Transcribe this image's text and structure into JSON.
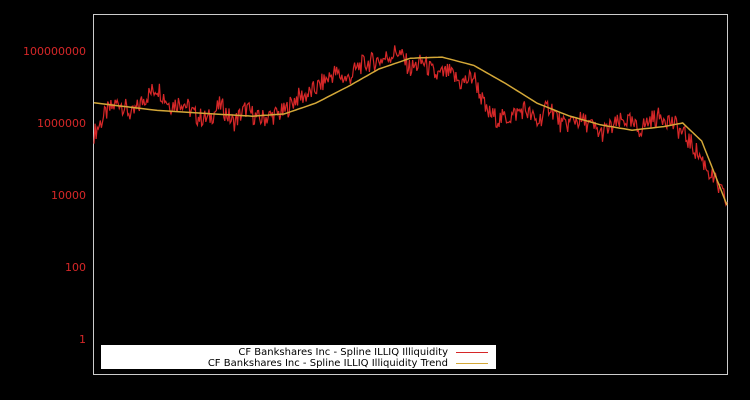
{
  "chart_data": {
    "type": "line",
    "title": "",
    "xlabel": "",
    "ylabel": "",
    "yscale": "log",
    "ylim": [
      0.2,
      1000000000
    ],
    "ytick_labels": [
      "100000000",
      "1000000",
      "10000",
      "100",
      "1"
    ],
    "ytick_values": [
      100000000,
      1000000,
      10000,
      100,
      1
    ],
    "grid": false,
    "legend_position": "lower left",
    "colors": {
      "background": "#000000",
      "frame": "#cccccc",
      "tick_label": "#d62728",
      "series": "#d62728",
      "trend": "#d4a838"
    },
    "series": [
      {
        "name": "CF Bankshares Inc - Spline ILLIQ Illiquidity",
        "x_norm": [
          0.0,
          0.02,
          0.04,
          0.06,
          0.08,
          0.1,
          0.12,
          0.14,
          0.16,
          0.18,
          0.2,
          0.22,
          0.24,
          0.26,
          0.28,
          0.3,
          0.32,
          0.34,
          0.36,
          0.38,
          0.4,
          0.42,
          0.44,
          0.46,
          0.48,
          0.5,
          0.52,
          0.54,
          0.56,
          0.58,
          0.6,
          0.62,
          0.64,
          0.66,
          0.68,
          0.7,
          0.72,
          0.74,
          0.76,
          0.78,
          0.8,
          0.82,
          0.84,
          0.86,
          0.88,
          0.9,
          0.92,
          0.94,
          0.96,
          0.98,
          1.0
        ],
        "log10_values": [
          5.7,
          6.3,
          6.6,
          6.2,
          6.7,
          7.0,
          6.5,
          6.6,
          6.2,
          6.1,
          6.5,
          6.0,
          6.4,
          6.1,
          6.2,
          6.3,
          6.7,
          6.8,
          7.1,
          7.4,
          7.2,
          7.6,
          7.7,
          7.8,
          8.0,
          7.5,
          7.7,
          7.3,
          7.4,
          7.1,
          7.3,
          6.3,
          6.1,
          6.2,
          6.4,
          6.0,
          6.5,
          5.9,
          6.1,
          6.0,
          5.7,
          5.9,
          6.1,
          5.8,
          6.1,
          6.2,
          5.9,
          5.5,
          5.0,
          4.4,
          3.8
        ]
      },
      {
        "name": "CF Bankshares Inc - Spline ILLIQ Illiquidity Trend",
        "x_norm": [
          0.0,
          0.1,
          0.2,
          0.25,
          0.3,
          0.35,
          0.4,
          0.45,
          0.5,
          0.55,
          0.6,
          0.65,
          0.7,
          0.75,
          0.8,
          0.85,
          0.9,
          0.93,
          0.96,
          1.0
        ],
        "log10_values": [
          6.56,
          6.35,
          6.24,
          6.19,
          6.25,
          6.55,
          7.0,
          7.5,
          7.8,
          7.83,
          7.6,
          7.1,
          6.55,
          6.2,
          5.95,
          5.8,
          5.9,
          6.0,
          5.5,
          3.72
        ]
      }
    ]
  },
  "legend": {
    "items": [
      {
        "label": "CF Bankshares Inc - Spline ILLIQ Illiquidity",
        "color": "#d62728"
      },
      {
        "label": "CF Bankshares Inc - Spline ILLIQ Illiquidity Trend",
        "color": "#d4a838"
      }
    ]
  }
}
